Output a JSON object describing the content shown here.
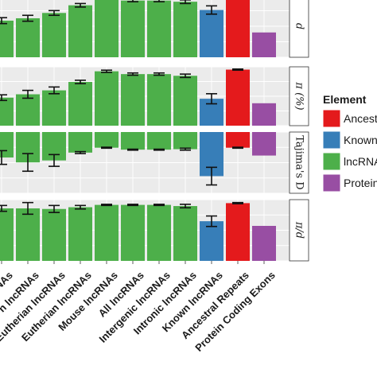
{
  "chart_data": {
    "type": "bar",
    "categories": [
      "lncRNAs",
      "n lncRNAs",
      "Eutherian lncRNAs",
      "Eutherian lncRNAs",
      "Mouse lncRNAs",
      "All lncRNAs",
      "Intergenic lncRNAs",
      "Intronic lncRNAs",
      "Known lncRNAs",
      "Ancestral Repeats",
      "Protein Coding Exons"
    ],
    "category_groups": [
      "lncRNAs",
      "lncRNAs",
      "lncRNAs",
      "lncRNAs",
      "lncRNAs",
      "lncRNAs",
      "lncRNAs",
      "lncRNAs",
      "Known",
      "Ancestral",
      "Protein"
    ],
    "facets": [
      {
        "label": "d",
        "values": [
          0.62,
          0.66,
          0.75,
          0.88,
          1.0,
          0.96,
          0.96,
          0.94,
          0.8,
          1.0,
          0.42
        ],
        "errors": [
          0.05,
          0.05,
          0.04,
          0.03,
          0.01,
          0.02,
          0.02,
          0.03,
          0.07,
          0.01,
          0.0
        ],
        "ylim": [
          0,
          1.05
        ]
      },
      {
        "label": "π (%)",
        "values": [
          0.5,
          0.56,
          0.63,
          0.78,
          0.97,
          0.92,
          0.92,
          0.89,
          0.48,
          1.0,
          0.4
        ],
        "errors": [
          0.05,
          0.07,
          0.06,
          0.03,
          0.02,
          0.02,
          0.02,
          0.03,
          0.09,
          0.01,
          0.0
        ],
        "ylim": [
          0,
          1.05
        ]
      },
      {
        "label": "Tajima's D",
        "values": [
          -0.52,
          -0.62,
          -0.58,
          -0.42,
          -0.32,
          -0.36,
          -0.36,
          -0.35,
          -0.9,
          -0.32,
          -0.48
        ],
        "errors": [
          0.14,
          0.18,
          0.12,
          0.02,
          0.01,
          0.01,
          0.01,
          0.02,
          0.18,
          0.01,
          0.0
        ],
        "ylim": [
          -1.25,
          0
        ]
      },
      {
        "label": "π/d",
        "values": [
          0.9,
          0.9,
          0.89,
          0.92,
          0.96,
          0.96,
          0.96,
          0.94,
          0.68,
          0.99,
          0.6
        ],
        "errors": [
          0.05,
          0.1,
          0.06,
          0.03,
          0.01,
          0.01,
          0.01,
          0.03,
          0.09,
          0.01,
          0.0
        ],
        "ylim": [
          0,
          1.05
        ]
      }
    ],
    "legend": {
      "title": "Element",
      "position": "right",
      "entries": [
        {
          "label": "Ancestral Repeats",
          "color": "#e41a1c"
        },
        {
          "label": "Known lncRNAs",
          "color": "#377eb8"
        },
        {
          "label": "lncRNAs",
          "color": "#4daf4a"
        },
        {
          "label": "Protein Coding Exons",
          "color": "#984ea3"
        }
      ]
    },
    "colors": {
      "lncRNAs": "#4daf4a",
      "Known": "#377eb8",
      "Ancestral": "#e41a1c",
      "Protein": "#984ea3"
    },
    "grid": true
  }
}
